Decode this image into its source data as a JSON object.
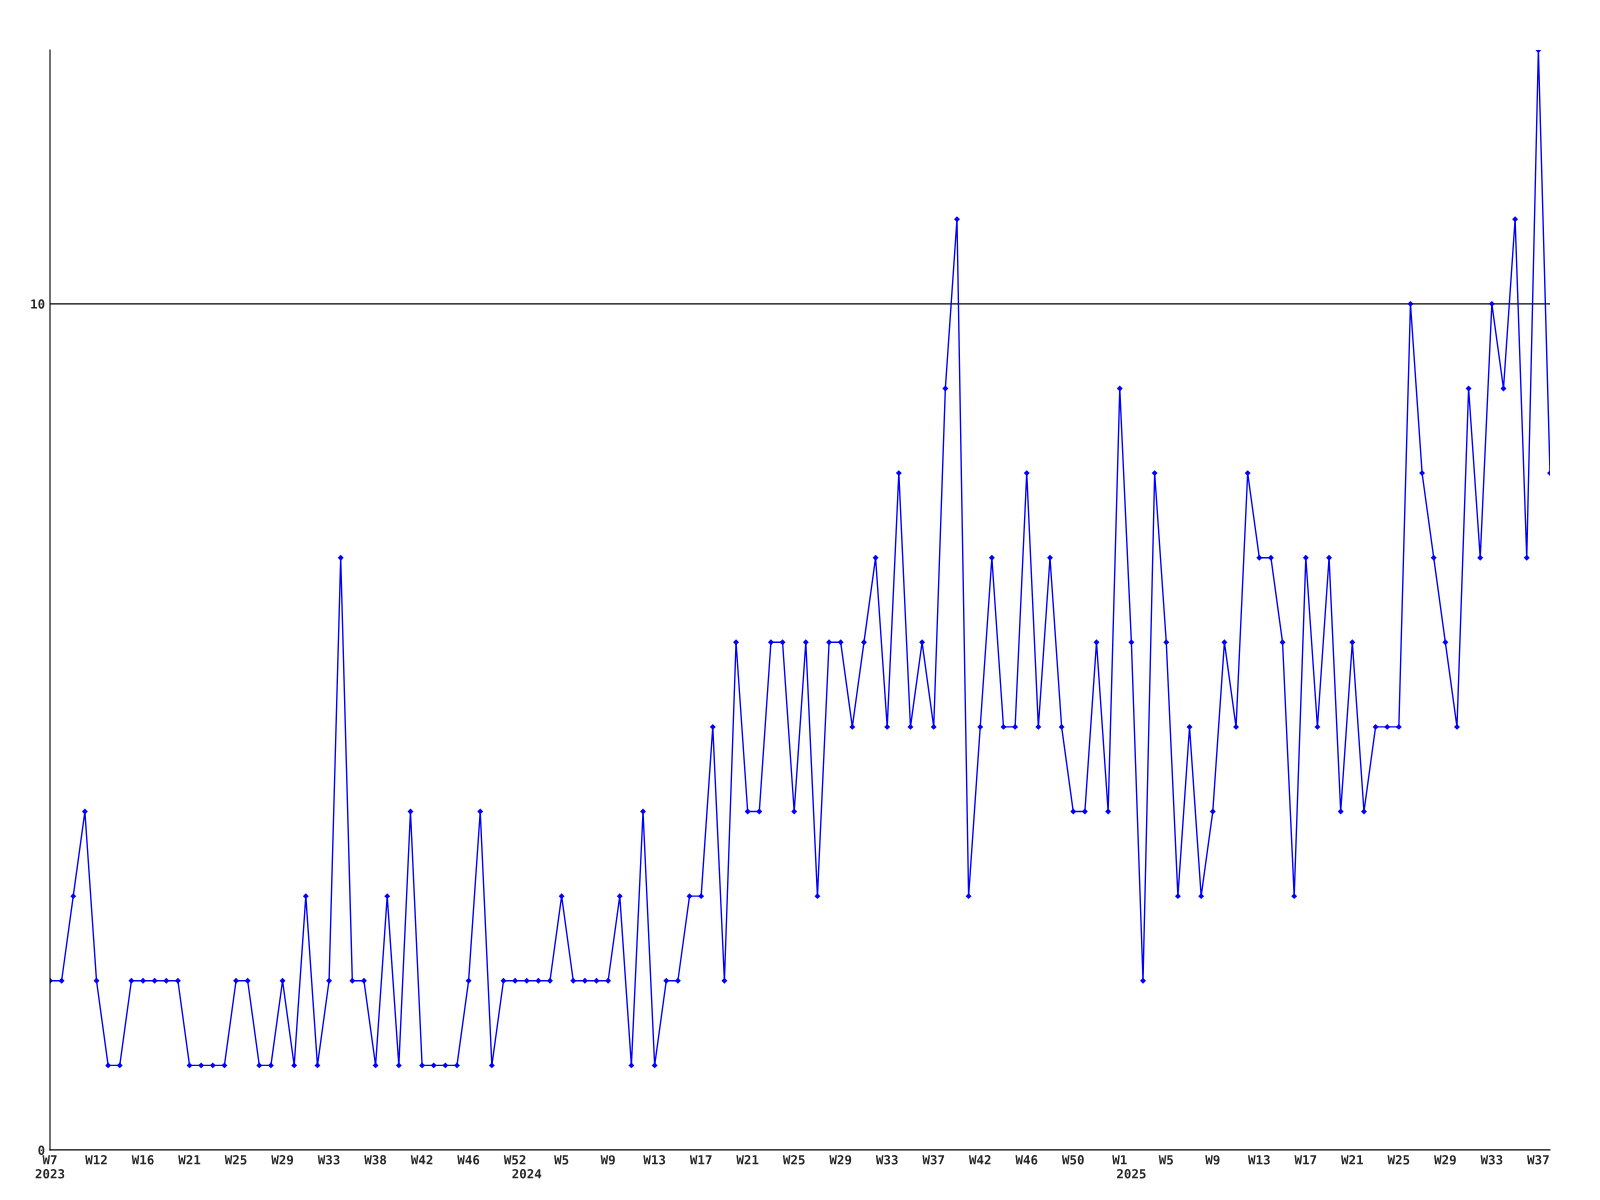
{
  "chart_data": {
    "type": "line",
    "categories": [
      "W7\n2023",
      null,
      null,
      null,
      "W12",
      null,
      null,
      null,
      "W16",
      null,
      null,
      null,
      "W21",
      null,
      null,
      null,
      "W25",
      null,
      null,
      null,
      "W29",
      null,
      null,
      null,
      "W33",
      null,
      null,
      null,
      "W38",
      null,
      null,
      null,
      "W42",
      null,
      null,
      null,
      "W46",
      null,
      null,
      null,
      "W52",
      "\n2024",
      null,
      null,
      "W5",
      null,
      null,
      null,
      "W9",
      null,
      null,
      null,
      "W13",
      null,
      null,
      null,
      "W17",
      null,
      null,
      null,
      "W21",
      null,
      null,
      null,
      "W25",
      null,
      null,
      null,
      "W29",
      null,
      null,
      null,
      "W33",
      null,
      null,
      null,
      "W37",
      null,
      null,
      null,
      "W42",
      null,
      null,
      null,
      "W46",
      null,
      null,
      null,
      "W50",
      null,
      null,
      null,
      "W1",
      "\n2025",
      null,
      null,
      "W5",
      null,
      null,
      null,
      "W9",
      null,
      null,
      null,
      "W13",
      null,
      null,
      null,
      "W17",
      null,
      null,
      null,
      "W21",
      null,
      null,
      null,
      "W25",
      null,
      null,
      null,
      "W29",
      null,
      null,
      null,
      "W33",
      null,
      null,
      null,
      "W37",
      null
    ],
    "series": [
      {
        "color": "#0000ff",
        "values": [
          2,
          2,
          3,
          4,
          2,
          1,
          1,
          2,
          2,
          2,
          2,
          2,
          1,
          1,
          1,
          1,
          2,
          2,
          1,
          1,
          2,
          1,
          3,
          1,
          2,
          7,
          2,
          2,
          1,
          3,
          1,
          4,
          1,
          1,
          1,
          1,
          2,
          4,
          1,
          2,
          2,
          2,
          2,
          2,
          3,
          2,
          2,
          2,
          2,
          3,
          1,
          4,
          1,
          2,
          2,
          3,
          3,
          5,
          2,
          6,
          4,
          4,
          6,
          6,
          4,
          6,
          3,
          6,
          6,
          5,
          6,
          7,
          5,
          8,
          5,
          6,
          5,
          9,
          11,
          3,
          5,
          7,
          5,
          5,
          8,
          5,
          7,
          5,
          4,
          4,
          6,
          4,
          9,
          6,
          2,
          8,
          6,
          3,
          5,
          3,
          4,
          6,
          5,
          8,
          7,
          7,
          6,
          3,
          7,
          5,
          7,
          4,
          6,
          4,
          5,
          5,
          5,
          10,
          8,
          7,
          6,
          5,
          9,
          7,
          10,
          9,
          11,
          7,
          13,
          8
        ]
      }
    ],
    "ylim": [
      0,
      13
    ],
    "yticks": [
      0,
      10
    ],
    "grid": "y",
    "marker": "diamond",
    "line_style": "solid"
  }
}
